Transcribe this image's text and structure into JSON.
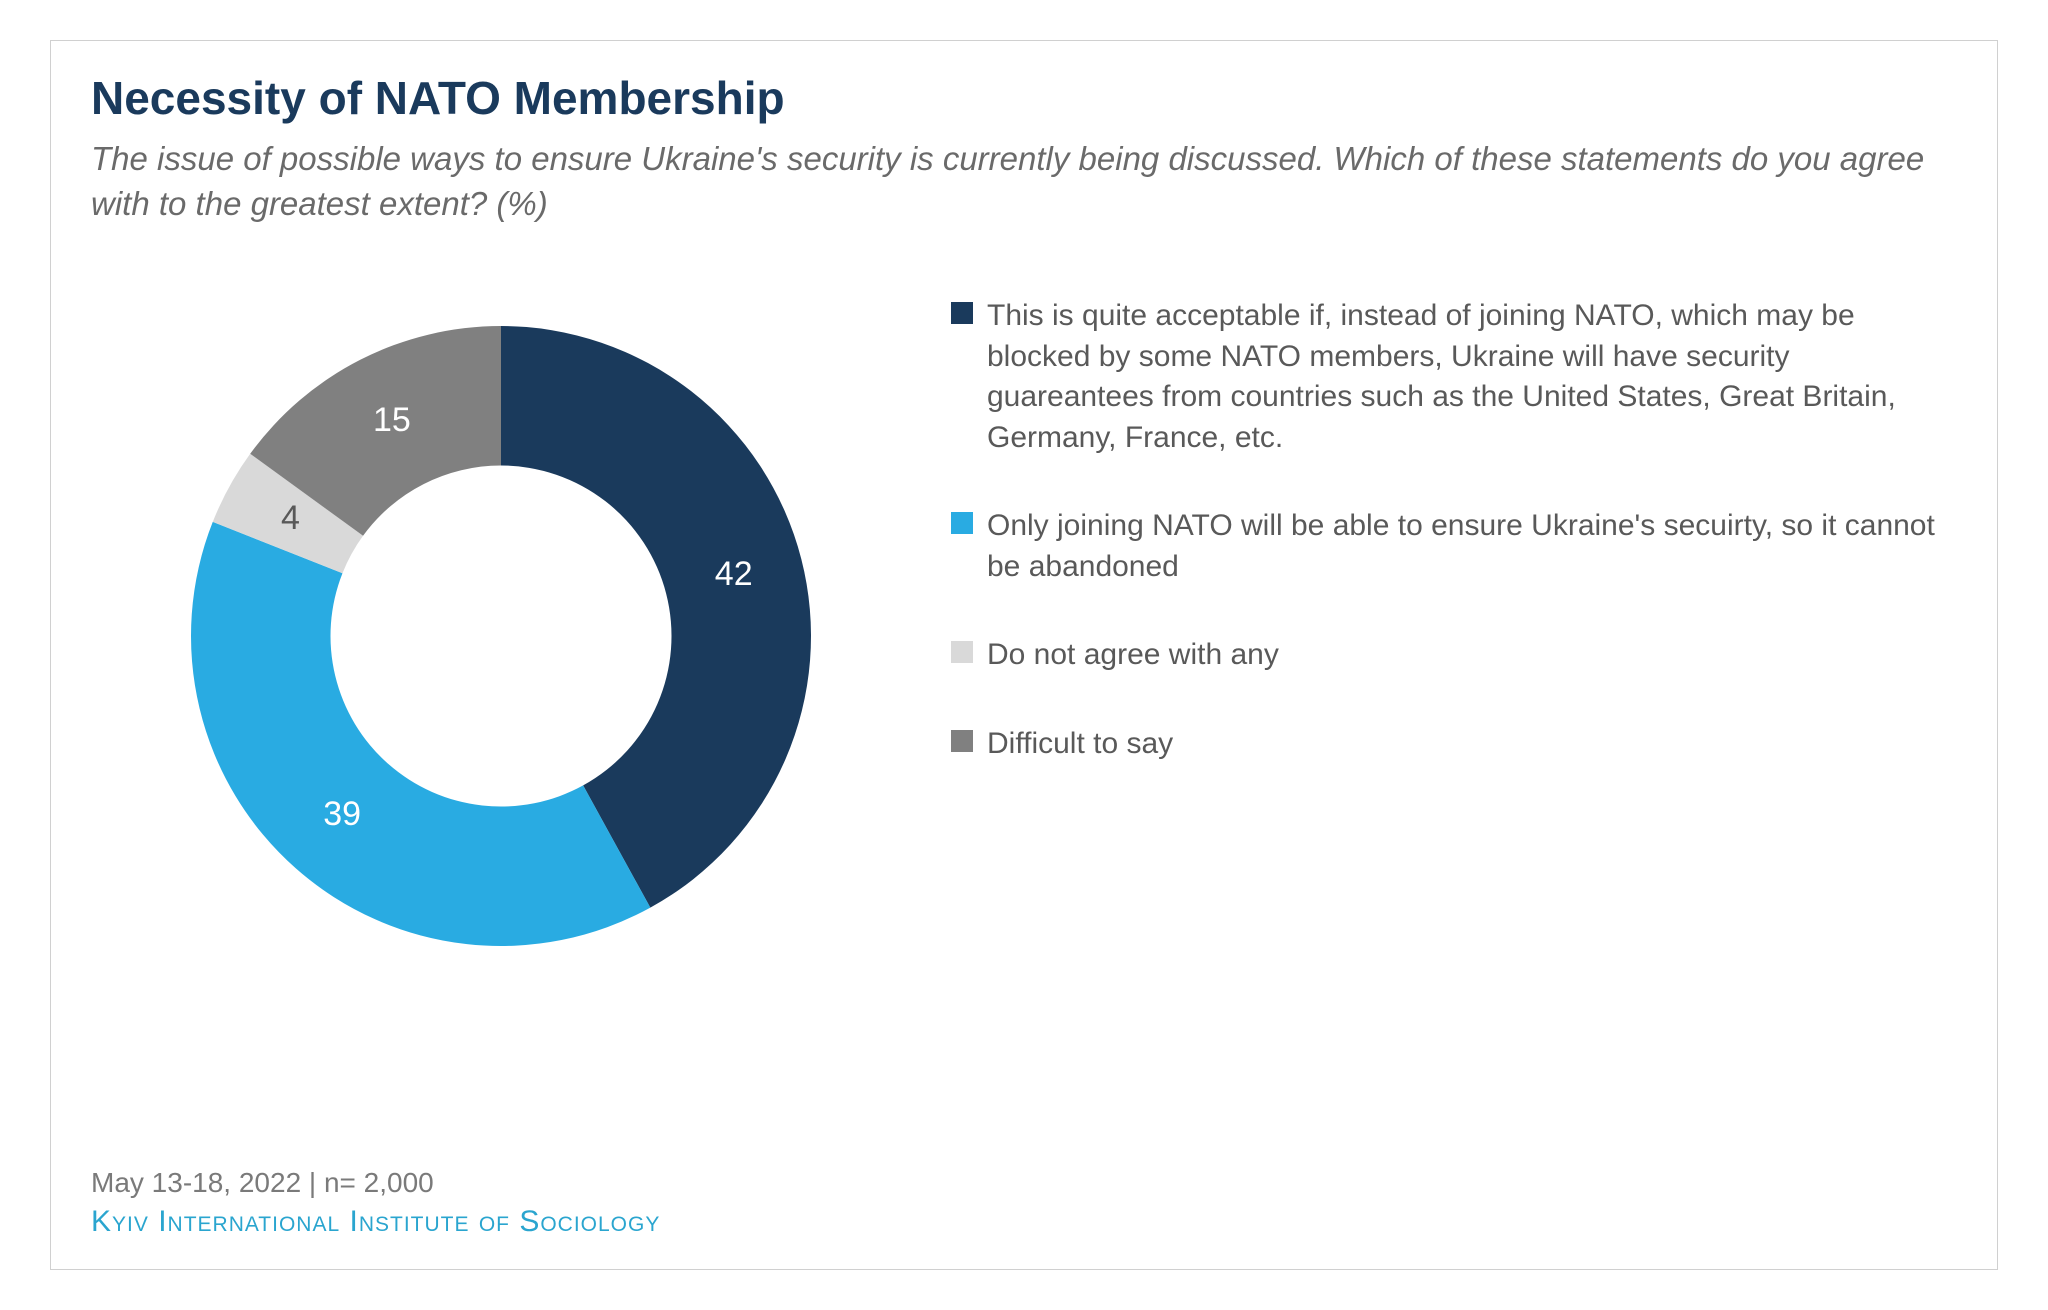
{
  "title": "Necessity of NATO Membership",
  "subtitle": "The issue of possible ways to ensure Ukraine's security is currently being discussed. Which of these statements do you agree with to the greatest extent? (%)",
  "chart": {
    "type": "donut",
    "inner_radius_ratio": 0.55,
    "background_color": "#ffffff",
    "value_label_fontsize": 34,
    "value_label_color_light": "#ffffff",
    "value_label_color_dark": "#595959",
    "start_angle_deg": 0,
    "slices": [
      {
        "label": "This is quite acceptable if, instead of joining NATO, which may be blocked by some NATO members, Ukraine will have security guareantees from countries such as the United States, Great Britain, Germany, France, etc.",
        "value": 42,
        "color": "#1a3a5c",
        "label_color": "light"
      },
      {
        "label": "Only joining NATO will be able to ensure Ukraine's secuirty, so it cannot be abandoned",
        "value": 39,
        "color": "#29abe2",
        "label_color": "light"
      },
      {
        "label": "Do not agree with any",
        "value": 4,
        "color": "#d9d9d9",
        "label_color": "dark"
      },
      {
        "label": "Difficult to say",
        "value": 15,
        "color": "#808080",
        "label_color": "light"
      }
    ]
  },
  "footer": {
    "meta": "May 13-18, 2022  | n= 2,000",
    "source": "Kyiv International Institute of Sociology"
  },
  "typography": {
    "title_fontsize": 46,
    "title_color": "#1a3a5c",
    "subtitle_fontsize": 33,
    "subtitle_color": "#6a6a6a",
    "legend_fontsize": 30,
    "legend_color": "#595959",
    "footer_meta_fontsize": 28,
    "footer_meta_color": "#7a7a7a",
    "footer_source_fontsize": 30,
    "footer_source_color": "#2aa5cf"
  }
}
